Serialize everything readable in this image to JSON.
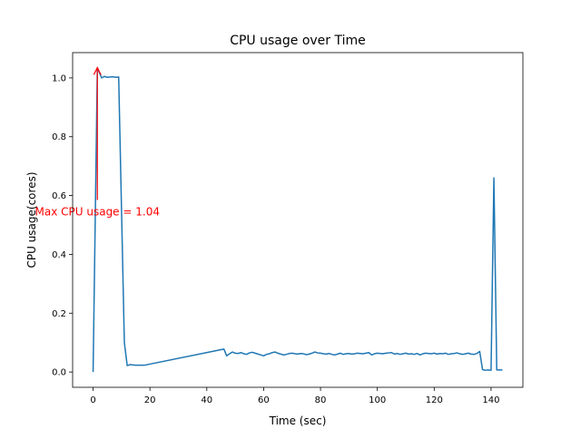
{
  "chart_data": {
    "type": "line",
    "title": "CPU usage over Time",
    "xlabel": "Time (sec)",
    "ylabel": "CPU usage(cores)",
    "xlim": [
      -7.2,
      151.2
    ],
    "ylim": [
      -0.052,
      1.086
    ],
    "xticks": [
      0,
      20,
      40,
      60,
      80,
      100,
      120,
      140
    ],
    "xtick_labels": [
      "0",
      "20",
      "40",
      "60",
      "80",
      "100",
      "120",
      "140"
    ],
    "yticks": [
      0.0,
      0.2,
      0.4,
      0.6,
      0.8,
      1.0
    ],
    "ytick_labels": [
      "0.0",
      "0.2",
      "0.4",
      "0.6",
      "0.8",
      "1.0"
    ],
    "grid": false,
    "line_color": "#1f77b4",
    "annotation": {
      "text": "Max CPU usage = 1.04",
      "color": "#ff0000",
      "point": [
        1.5,
        1.035
      ],
      "text_pos": [
        1.5,
        0.585
      ]
    },
    "series": [
      {
        "x": [
          0,
          1.5,
          3,
          4,
          5,
          6,
          7,
          8,
          9,
          11,
          12,
          13,
          14,
          15,
          16,
          17,
          18,
          46,
          47,
          48,
          49,
          50,
          51,
          52,
          53,
          54,
          55,
          56,
          57,
          58,
          59,
          60,
          61,
          62,
          63,
          64,
          65,
          66,
          67,
          68,
          69,
          70,
          71,
          72,
          73,
          74,
          75,
          76,
          77,
          78,
          79,
          80,
          81,
          82,
          83,
          84,
          85,
          86,
          87,
          88,
          89,
          90,
          91,
          92,
          93,
          94,
          95,
          96,
          97,
          98,
          99,
          100,
          101,
          102,
          103,
          104,
          105,
          106,
          107,
          108,
          109,
          110,
          111,
          112,
          113,
          114,
          115,
          116,
          117,
          118,
          119,
          120,
          121,
          122,
          123,
          124,
          125,
          126,
          127,
          128,
          129,
          130,
          131,
          132,
          133,
          134,
          135,
          136,
          137,
          138,
          139,
          140,
          141,
          142,
          143,
          144
        ],
        "y": [
          0.0,
          1.035,
          1.0,
          1.005,
          1.002,
          1.003,
          1.004,
          1.002,
          1.003,
          0.1,
          0.022,
          0.025,
          0.024,
          0.023,
          0.023,
          0.023,
          0.023,
          0.078,
          0.055,
          0.062,
          0.068,
          0.064,
          0.063,
          0.066,
          0.062,
          0.06,
          0.065,
          0.067,
          0.064,
          0.061,
          0.058,
          0.055,
          0.06,
          0.062,
          0.066,
          0.068,
          0.064,
          0.061,
          0.058,
          0.06,
          0.063,
          0.064,
          0.062,
          0.061,
          0.063,
          0.062,
          0.059,
          0.061,
          0.064,
          0.068,
          0.065,
          0.064,
          0.062,
          0.061,
          0.063,
          0.06,
          0.058,
          0.061,
          0.064,
          0.06,
          0.062,
          0.063,
          0.061,
          0.062,
          0.064,
          0.063,
          0.062,
          0.064,
          0.066,
          0.058,
          0.062,
          0.064,
          0.063,
          0.062,
          0.064,
          0.065,
          0.066,
          0.061,
          0.063,
          0.06,
          0.062,
          0.064,
          0.061,
          0.062,
          0.06,
          0.063,
          0.058,
          0.062,
          0.064,
          0.063,
          0.062,
          0.064,
          0.061,
          0.063,
          0.062,
          0.064,
          0.06,
          0.062,
          0.063,
          0.065,
          0.062,
          0.06,
          0.062,
          0.064,
          0.061,
          0.06,
          0.063,
          0.07,
          0.008,
          0.006,
          0.007,
          0.006,
          0.66,
          0.007,
          0.007,
          0.007
        ]
      }
    ]
  }
}
